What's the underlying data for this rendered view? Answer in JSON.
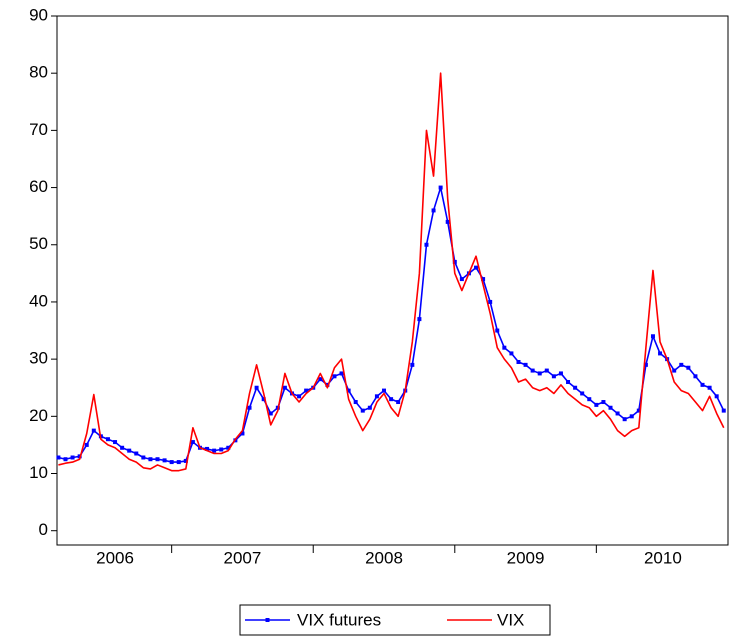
{
  "chart_data": {
    "type": "line",
    "x": [
      2006.2,
      2006.25,
      2006.3,
      2006.35,
      2006.4,
      2006.45,
      2006.5,
      2006.55,
      2006.6,
      2006.65,
      2006.7,
      2006.75,
      2006.8,
      2006.85,
      2006.9,
      2006.95,
      2007.0,
      2007.05,
      2007.1,
      2007.15,
      2007.2,
      2007.25,
      2007.3,
      2007.35,
      2007.4,
      2007.45,
      2007.5,
      2007.55,
      2007.6,
      2007.65,
      2007.7,
      2007.75,
      2007.8,
      2007.85,
      2007.9,
      2007.95,
      2008.0,
      2008.05,
      2008.1,
      2008.15,
      2008.2,
      2008.25,
      2008.3,
      2008.35,
      2008.4,
      2008.45,
      2008.5,
      2008.55,
      2008.6,
      2008.65,
      2008.7,
      2008.75,
      2008.8,
      2008.85,
      2008.9,
      2008.95,
      2009.0,
      2009.05,
      2009.1,
      2009.15,
      2009.2,
      2009.25,
      2009.3,
      2009.35,
      2009.4,
      2009.45,
      2009.5,
      2009.55,
      2009.6,
      2009.65,
      2009.7,
      2009.75,
      2009.8,
      2009.85,
      2009.9,
      2009.95,
      2010.0,
      2010.05,
      2010.1,
      2010.15,
      2010.2,
      2010.25,
      2010.3,
      2010.35,
      2010.4,
      2010.45,
      2010.5,
      2010.55,
      2010.6,
      2010.65,
      2010.7,
      2010.75,
      2010.8,
      2010.85,
      2010.9
    ],
    "series": [
      {
        "name": "VIX futures",
        "color": "#0000ff",
        "marker": "square",
        "values": [
          12.8,
          12.5,
          12.8,
          13.0,
          15.0,
          17.5,
          16.5,
          16.0,
          15.5,
          14.5,
          14.0,
          13.5,
          12.8,
          12.5,
          12.5,
          12.3,
          12.0,
          12.0,
          12.2,
          15.5,
          14.5,
          14.3,
          14.0,
          14.2,
          14.5,
          15.8,
          17.0,
          21.5,
          25.0,
          23.0,
          20.5,
          21.5,
          25.0,
          24.0,
          23.5,
          24.5,
          25.0,
          26.5,
          25.5,
          27.0,
          27.5,
          24.5,
          22.5,
          21.0,
          21.5,
          23.5,
          24.5,
          23.0,
          22.5,
          24.5,
          29.0,
          37.0,
          50.0,
          56.0,
          60.0,
          54.0,
          47.0,
          44.0,
          45.0,
          46.0,
          44.0,
          40.0,
          35.0,
          32.0,
          31.0,
          29.5,
          29.0,
          28.0,
          27.5,
          28.0,
          27.0,
          27.5,
          26.0,
          25.0,
          24.0,
          23.0,
          22.0,
          22.5,
          21.5,
          20.5,
          19.5,
          20.0,
          21.0,
          29.0,
          34.0,
          31.0,
          30.0,
          28.0,
          29.0,
          28.5,
          27.0,
          25.5,
          25.0,
          23.5,
          21.0
        ]
      },
      {
        "name": "VIX",
        "color": "#ff0000",
        "values": [
          11.5,
          11.8,
          12.0,
          12.5,
          17.0,
          23.8,
          16.0,
          15.0,
          14.5,
          13.5,
          12.5,
          12.0,
          11.0,
          10.8,
          11.5,
          11.0,
          10.5,
          10.5,
          10.8,
          18.0,
          14.5,
          14.0,
          13.5,
          13.5,
          14.0,
          16.0,
          17.5,
          24.0,
          29.0,
          24.0,
          18.5,
          21.0,
          27.5,
          24.0,
          22.5,
          24.0,
          25.0,
          27.5,
          25.0,
          28.5,
          30.0,
          23.0,
          20.0,
          17.5,
          19.5,
          22.5,
          24.0,
          21.5,
          20.0,
          24.5,
          33.0,
          45.0,
          70.0,
          62.0,
          80.0,
          58.0,
          45.0,
          42.0,
          45.0,
          48.0,
          43.0,
          38.0,
          32.0,
          30.0,
          28.5,
          26.0,
          26.5,
          25.0,
          24.5,
          25.0,
          24.0,
          25.5,
          24.0,
          23.0,
          22.0,
          21.5,
          20.0,
          21.0,
          19.5,
          17.5,
          16.5,
          17.5,
          18.0,
          32.0,
          45.5,
          33.0,
          30.0,
          26.0,
          24.5,
          24.0,
          22.5,
          21.0,
          23.5,
          20.5,
          18.0
        ]
      }
    ],
    "xlim": [
      2006.19,
      2010.93
    ],
    "xticks": [
      {
        "value": 2006.6,
        "label": "2006"
      },
      {
        "value": 2007.5,
        "label": "2007"
      },
      {
        "value": 2008.5,
        "label": "2008"
      },
      {
        "value": 2009.5,
        "label": "2009"
      },
      {
        "value": 2010.47,
        "label": "2010"
      }
    ],
    "ylim": [
      -2.5,
      90
    ],
    "yticks": [
      0,
      10,
      20,
      30,
      40,
      50,
      60,
      70,
      80,
      90
    ],
    "grid": false,
    "legend": "bottom"
  }
}
